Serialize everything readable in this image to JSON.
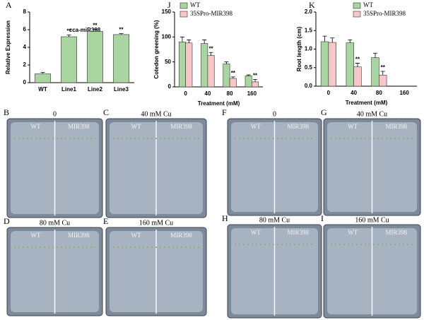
{
  "chart_data": [
    {
      "type": "bar",
      "panel": "A",
      "title": "cca-miR398",
      "y_label": "Relative Expression",
      "categories": [
        "WT",
        "Line1",
        "Line2",
        "Line3"
      ],
      "values": [
        1.0,
        5.2,
        5.8,
        5.45
      ],
      "errors": [
        0.15,
        0.2,
        0.25,
        0.1
      ],
      "significance": [
        null,
        "**",
        "**",
        "**"
      ],
      "color": "#a8d5a0",
      "ylim": [
        0,
        8
      ],
      "yticks": [
        0,
        2,
        4,
        6,
        8
      ]
    },
    {
      "type": "bar",
      "panel": "J",
      "y_label": "Cotedon greening (%)",
      "x_label": "Treatment (mM)",
      "categories": [
        "0",
        "40",
        "80",
        "160"
      ],
      "series": [
        {
          "name": "WT",
          "color": "#a8d5a0",
          "values": [
            90,
            87,
            46,
            22
          ],
          "errors": [
            10,
            7,
            4,
            2
          ],
          "significance": [
            null,
            null,
            null,
            null
          ]
        },
        {
          "name": "35SPro-MIR398",
          "color": "#f6c6c9",
          "values": [
            88,
            63,
            17,
            10
          ],
          "errors": [
            6,
            6,
            3,
            5
          ],
          "significance": [
            null,
            "**",
            "**",
            "**"
          ]
        }
      ],
      "ylim": [
        0,
        150
      ],
      "yticks": [
        0,
        50,
        100,
        150
      ],
      "legend": "upper left"
    },
    {
      "type": "bar",
      "panel": "K",
      "y_label": "Root length (cm)",
      "x_label": "Treatment (mM)",
      "categories": [
        "0",
        "40",
        "80",
        "160"
      ],
      "series": [
        {
          "name": "WT",
          "color": "#a8d5a0",
          "values": [
            1.2,
            1.17,
            0.77,
            null
          ],
          "errors": [
            0.15,
            0.08,
            0.12,
            null
          ],
          "significance": [
            null,
            null,
            null,
            null
          ]
        },
        {
          "name": "35SPro-MIR398",
          "color": "#f6c6c9",
          "values": [
            1.18,
            0.52,
            0.3,
            null
          ],
          "errors": [
            0.12,
            0.1,
            0.1,
            null
          ],
          "significance": [
            null,
            "**",
            "**",
            null
          ]
        }
      ],
      "ylim": [
        0,
        2.0
      ],
      "yticks": [
        {
          "value": 0,
          "label": "0.0"
        },
        {
          "value": 0.5,
          "label": "0.5"
        },
        {
          "value": 1.0,
          "label": "1.0"
        },
        {
          "value": 1.5,
          "label": "1.5"
        },
        {
          "value": 2.0,
          "label": "2.0"
        }
      ],
      "legend": "upper right"
    }
  ],
  "photos": [
    {
      "letter": "B",
      "caption": "0",
      "left_label": "WT",
      "right_label": "MIR398"
    },
    {
      "letter": "C",
      "caption": "40 mM Cu",
      "left_label": "WT",
      "right_label": "MIR398"
    },
    {
      "letter": "D",
      "caption": "80 mM Cu",
      "left_label": "WT",
      "right_label": "MIR398"
    },
    {
      "letter": "E",
      "caption": "160 mM Cu",
      "left_label": "WT",
      "right_label": "MIR398"
    },
    {
      "letter": "F",
      "caption": "0",
      "left_label": "WT",
      "right_label": "MIR398"
    },
    {
      "letter": "G",
      "caption": "40 mM Cu",
      "left_label": "WT",
      "right_label": "MIR398"
    },
    {
      "letter": "H",
      "caption": "80 mM Cu",
      "left_label": "WT",
      "right_label": "MIR398"
    },
    {
      "letter": "I",
      "caption": "160 mM Cu",
      "left_label": "WT",
      "right_label": "MIR398"
    }
  ]
}
